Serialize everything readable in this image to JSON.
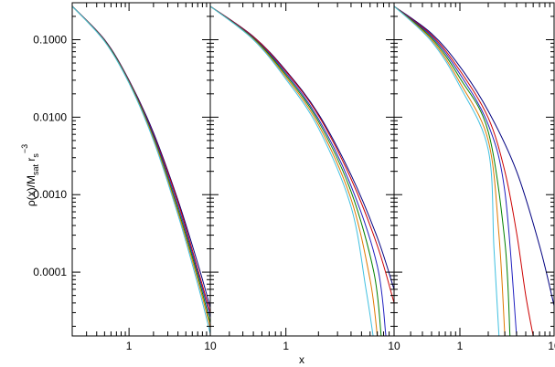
{
  "chart_data": {
    "type": "line",
    "layout": "three-panel, shared log-scale y axis",
    "xlabel": "x",
    "ylabel_main": "ρ(x)/M",
    "ylabel_sub1": "sat",
    "ylabel_mid": " r",
    "ylabel_sub2": "s",
    "ylabel_sup": "−3",
    "xscale": "log",
    "yscale": "log",
    "xlim": [
      0.2,
      10
    ],
    "ylim": [
      1.5e-05,
      0.3
    ],
    "x_ticks": [
      {
        "value": 1,
        "label": "1"
      },
      {
        "value": 10,
        "label": "10"
      }
    ],
    "y_ticks": [
      {
        "value": 0.1,
        "label": "0.1000"
      },
      {
        "value": 0.01,
        "label": "0.0100"
      },
      {
        "value": 0.001,
        "label": "0.0010"
      },
      {
        "value": 0.0001,
        "label": "0.0001"
      }
    ],
    "grid": false,
    "series_colors": [
      "#000080",
      "#cc0000",
      "#2020c0",
      "#008000",
      "#e07800",
      "#40c0e0"
    ],
    "panels": [
      {
        "series": [
          {
            "color": "#000080",
            "points": [
              [
                0.2,
                0.27
              ],
              [
                0.5,
                0.1
              ],
              [
                1,
                0.03
              ],
              [
                2,
                0.0063
              ],
              [
                4,
                0.00085
              ],
              [
                7,
                0.00013
              ],
              [
                10,
                3.5e-05
              ]
            ]
          },
          {
            "color": "#cc0000",
            "points": [
              [
                0.2,
                0.27
              ],
              [
                0.5,
                0.099
              ],
              [
                1,
                0.0295
              ],
              [
                2,
                0.006
              ],
              [
                4,
                0.0008
              ],
              [
                7,
                0.00011
              ],
              [
                10,
                3e-05
              ]
            ]
          },
          {
            "color": "#2020c0",
            "points": [
              [
                0.2,
                0.27
              ],
              [
                0.5,
                0.098
              ],
              [
                1,
                0.029
              ],
              [
                2,
                0.0058
              ],
              [
                4,
                0.00072
              ],
              [
                7,
                0.0001
              ],
              [
                10,
                2.6e-05
              ]
            ]
          },
          {
            "color": "#008000",
            "points": [
              [
                0.2,
                0.27
              ],
              [
                0.5,
                0.097
              ],
              [
                1,
                0.0285
              ],
              [
                2,
                0.0055
              ],
              [
                4,
                0.00065
              ],
              [
                7,
                9e-05
              ],
              [
                10,
                2.2e-05
              ]
            ]
          },
          {
            "color": "#e07800",
            "points": [
              [
                0.2,
                0.27
              ],
              [
                0.5,
                0.096
              ],
              [
                1,
                0.028
              ],
              [
                2,
                0.0053
              ],
              [
                4,
                0.0006
              ],
              [
                7,
                8e-05
              ],
              [
                10,
                1.9e-05
              ]
            ]
          },
          {
            "color": "#40c0e0",
            "points": [
              [
                0.2,
                0.27
              ],
              [
                0.5,
                0.095
              ],
              [
                1,
                0.0275
              ],
              [
                2,
                0.005
              ],
              [
                4,
                0.00055
              ],
              [
                7,
                7e-05
              ],
              [
                10,
                1.6e-05
              ]
            ]
          }
        ]
      },
      {
        "series": [
          {
            "color": "#000080",
            "points": [
              [
                0.2,
                0.27
              ],
              [
                0.5,
                0.11
              ],
              [
                1,
                0.04
              ],
              [
                2,
                0.011
              ],
              [
                4,
                0.0018
              ],
              [
                7,
                0.00028
              ],
              [
                10,
                6e-05
              ]
            ]
          },
          {
            "color": "#cc0000",
            "points": [
              [
                0.2,
                0.27
              ],
              [
                0.5,
                0.109
              ],
              [
                1,
                0.039
              ],
              [
                2,
                0.0105
              ],
              [
                4,
                0.0016
              ],
              [
                7,
                0.00022
              ],
              [
                10,
                4e-05
              ]
            ]
          },
          {
            "color": "#2020c0",
            "points": [
              [
                0.2,
                0.27
              ],
              [
                0.5,
                0.106
              ],
              [
                1,
                0.037
              ],
              [
                2,
                0.0095
              ],
              [
                4,
                0.0013
              ],
              [
                7,
                0.00012
              ],
              [
                8.4,
                1.5e-05
              ]
            ]
          },
          {
            "color": "#008000",
            "points": [
              [
                0.2,
                0.27
              ],
              [
                0.5,
                0.104
              ],
              [
                1,
                0.035
              ],
              [
                2,
                0.0088
              ],
              [
                4,
                0.0011
              ],
              [
                6.5,
                0.0001
              ],
              [
                7.6,
                1.5e-05
              ]
            ]
          },
          {
            "color": "#e07800",
            "points": [
              [
                0.2,
                0.27
              ],
              [
                0.5,
                0.102
              ],
              [
                1,
                0.033
              ],
              [
                2,
                0.008
              ],
              [
                4,
                0.00088
              ],
              [
                6,
                8e-05
              ],
              [
                7,
                1.5e-05
              ]
            ]
          },
          {
            "color": "#40c0e0",
            "points": [
              [
                0.2,
                0.27
              ],
              [
                0.5,
                0.1
              ],
              [
                1,
                0.031
              ],
              [
                2,
                0.0072
              ],
              [
                4,
                0.0007
              ],
              [
                5.5,
                6e-05
              ],
              [
                6.4,
                1.5e-05
              ]
            ]
          }
        ]
      },
      {
        "series": [
          {
            "color": "#000080",
            "points": [
              [
                0.2,
                0.27
              ],
              [
                0.5,
                0.12
              ],
              [
                1,
                0.045
              ],
              [
                2,
                0.012
              ],
              [
                4,
                0.002
              ],
              [
                7,
                0.00022
              ],
              [
                10,
                3.7e-05
              ]
            ]
          },
          {
            "color": "#cc0000",
            "points": [
              [
                0.2,
                0.27
              ],
              [
                0.5,
                0.115
              ],
              [
                1,
                0.04
              ],
              [
                2,
                0.0098
              ],
              [
                3,
                0.002
              ],
              [
                4,
                0.00032
              ],
              [
                5,
                5e-05
              ],
              [
                6,
                1.5e-05
              ]
            ]
          },
          {
            "color": "#2020c0",
            "points": [
              [
                0.2,
                0.27
              ],
              [
                0.5,
                0.11
              ],
              [
                1,
                0.036
              ],
              [
                2,
                0.008
              ],
              [
                3,
                0.0011
              ],
              [
                4,
                1.5e-05
              ]
            ]
          },
          {
            "color": "#008000",
            "points": [
              [
                0.2,
                0.27
              ],
              [
                0.5,
                0.105
              ],
              [
                1,
                0.032
              ],
              [
                2,
                0.0065
              ],
              [
                3,
                0.00025
              ],
              [
                3.4,
                1.5e-05
              ]
            ]
          },
          {
            "color": "#e07800",
            "points": [
              [
                0.2,
                0.27
              ],
              [
                0.5,
                0.1
              ],
              [
                1,
                0.028
              ],
              [
                2,
                0.005
              ],
              [
                2.6,
                0.0003
              ],
              [
                3,
                1.5e-05
              ]
            ]
          },
          {
            "color": "#40c0e0",
            "points": [
              [
                0.2,
                0.27
              ],
              [
                0.5,
                0.095
              ],
              [
                1,
                0.025
              ],
              [
                2,
                0.0038
              ],
              [
                2.3,
                0.0002
              ],
              [
                2.6,
                1.5e-05
              ]
            ]
          }
        ]
      }
    ]
  }
}
